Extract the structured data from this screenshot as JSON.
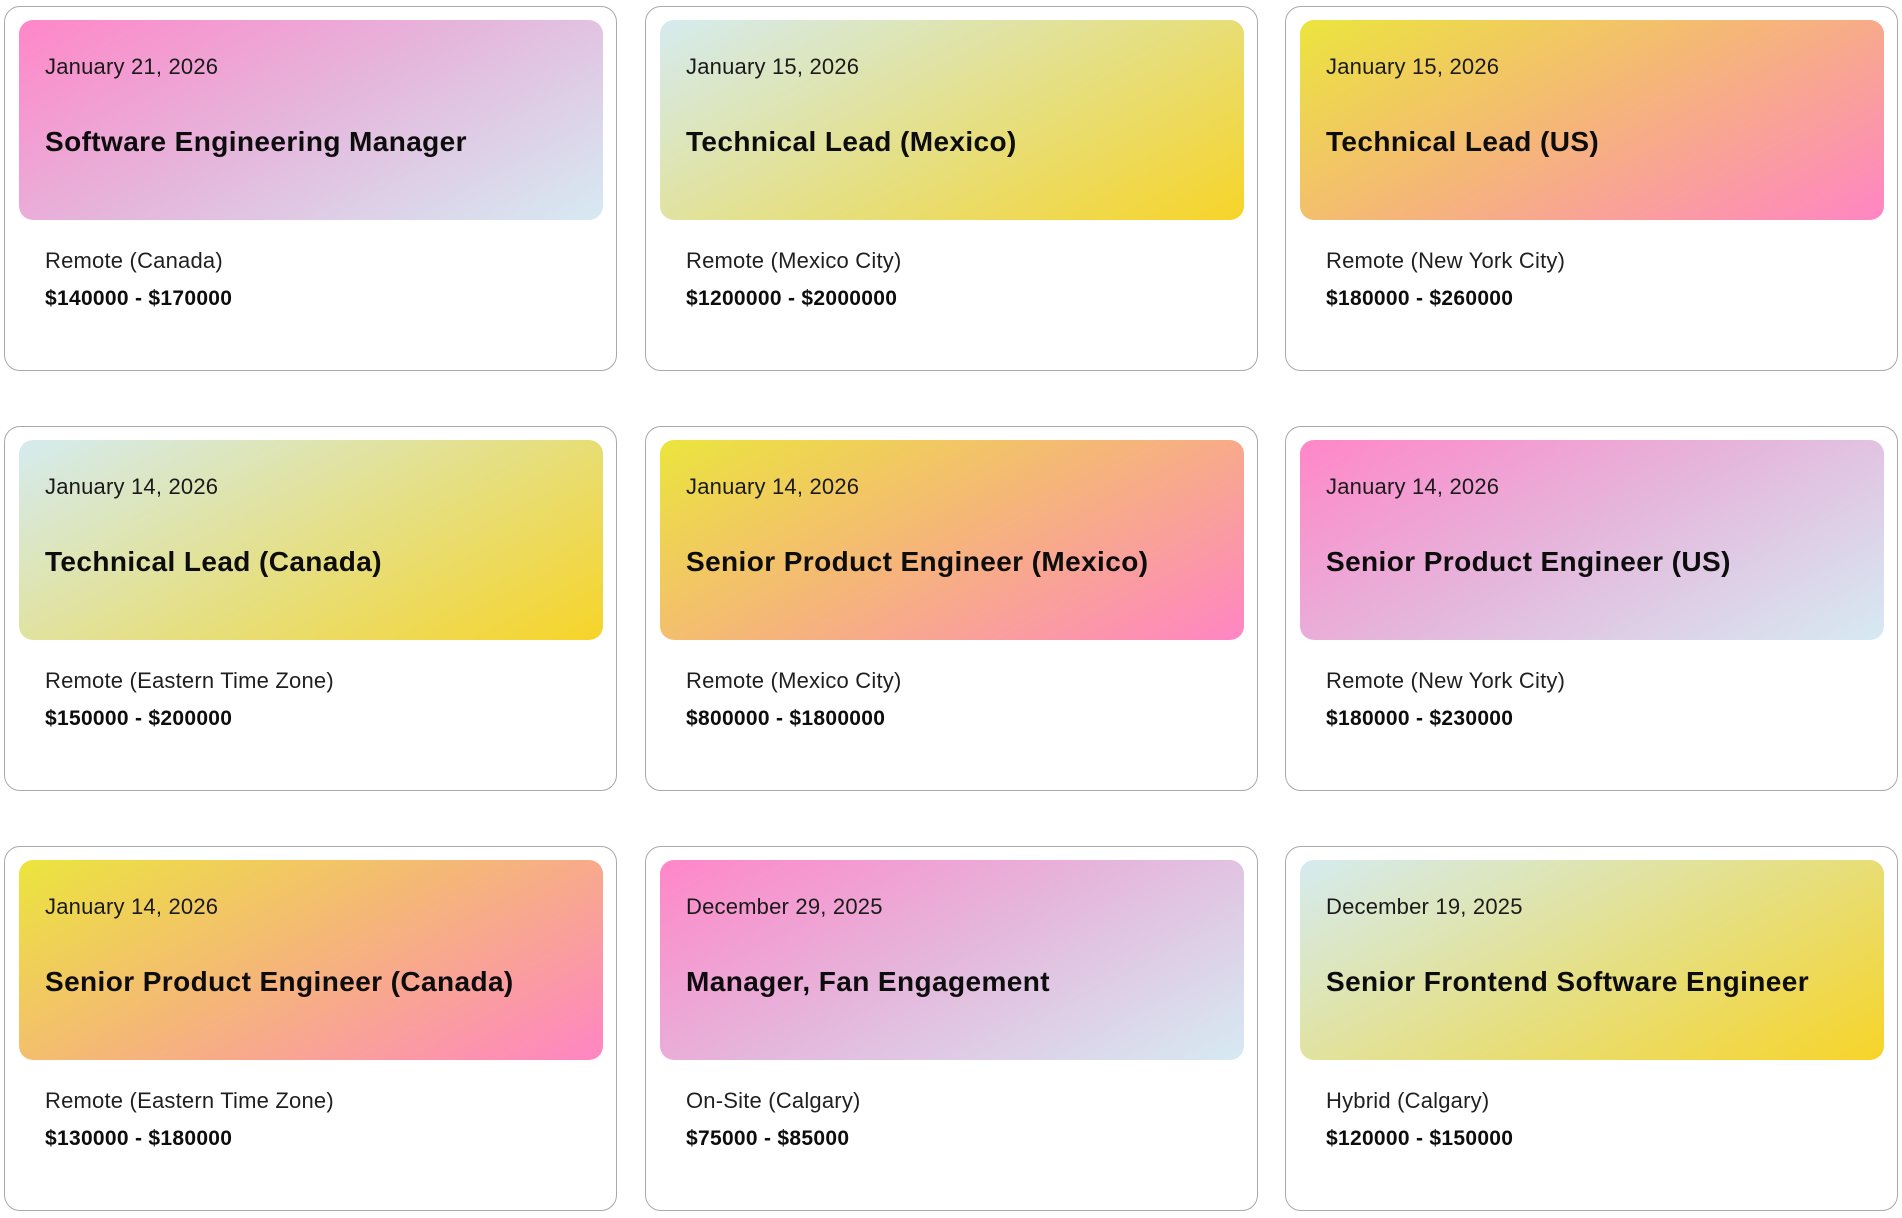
{
  "jobs": [
    {
      "date": "January 21, 2026",
      "title": "Software Engineering Manager",
      "location": "Remote (Canada)",
      "salary": "$140000 - $170000"
    },
    {
      "date": "January 15, 2026",
      "title": "Technical Lead (Mexico)",
      "location": "Remote (Mexico City)",
      "salary": "$1200000 - $2000000"
    },
    {
      "date": "January 15, 2026",
      "title": "Technical Lead (US)",
      "location": "Remote (New York City)",
      "salary": "$180000 - $260000"
    },
    {
      "date": "January 14, 2026",
      "title": "Technical Lead (Canada)",
      "location": "Remote (Eastern Time Zone)",
      "salary": "$150000 - $200000"
    },
    {
      "date": "January 14, 2026",
      "title": "Senior Product Engineer (Mexico)",
      "location": "Remote (Mexico City)",
      "salary": "$800000 - $1800000"
    },
    {
      "date": "January 14, 2026",
      "title": "Senior Product Engineer (US)",
      "location": "Remote (New York City)",
      "salary": "$180000 - $230000"
    },
    {
      "date": "January 14, 2026",
      "title": "Senior Product Engineer (Canada)",
      "location": "Remote (Eastern Time Zone)",
      "salary": "$130000 - $180000"
    },
    {
      "date": "December 29, 2025",
      "title": "Manager, Fan Engagement",
      "location": "On-Site (Calgary)",
      "salary": "$75000 - $85000"
    },
    {
      "date": "December 19, 2025",
      "title": "Senior Frontend Software Engineer",
      "location": "Hybrid (Calgary)",
      "salary": "$120000 - $150000"
    }
  ],
  "colors": {
    "pink_gradient": [
      "#ff86c8",
      "#e5b6dc",
      "#d6eaf2"
    ],
    "blue_yellow_gradient": [
      "#d5ebf0",
      "#e4e08a",
      "#f7d428"
    ],
    "yellow_pink_gradient": [
      "#ebe53d",
      "#f5b678",
      "#ff85c4"
    ],
    "card_border": "#a9a9a9"
  }
}
